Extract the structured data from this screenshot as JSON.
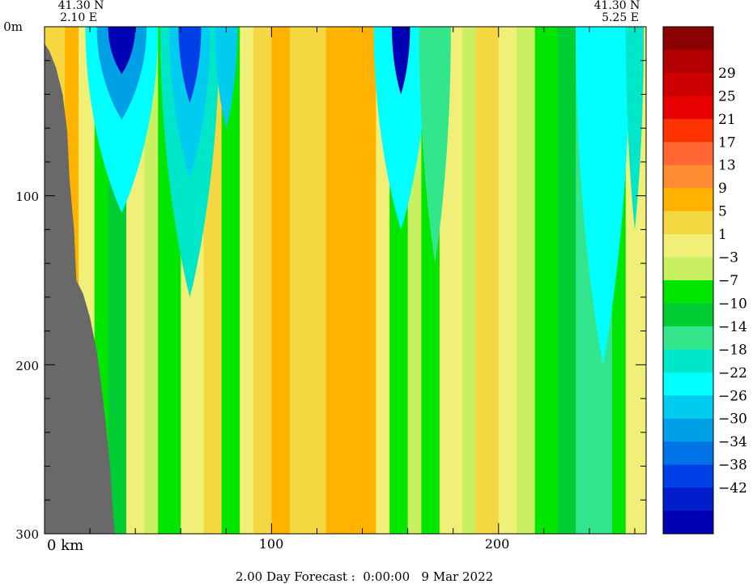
{
  "chart_data": {
    "type": "heatmap",
    "corner_left": {
      "lat": "41.30 N",
      "lon": "2.10 E"
    },
    "corner_right": {
      "lat": "41.30 N",
      "lon": "5.25 E"
    },
    "x_unit": "km",
    "xlim": [
      0,
      265
    ],
    "x_ticks": [
      0,
      100,
      200
    ],
    "x_tick_labels": [
      "0 km",
      "100",
      "200"
    ],
    "y_unit": "m",
    "ylim": [
      0,
      300
    ],
    "y_ticks": [
      0,
      100,
      200,
      300
    ],
    "y_tick_labels": [
      "0m",
      "100",
      "200",
      "300"
    ],
    "footer": "2.00 Day Forecast :  0:00:00   9 Mar 2022",
    "colorbar": {
      "labels": [
        "29",
        "25",
        "21",
        "17",
        "13",
        "9",
        "5",
        "1",
        "-3",
        "-7",
        "-10",
        "-14",
        "-18",
        "-22",
        "-26",
        "-30",
        "-34",
        "-38",
        "-42"
      ],
      "colors": [
        "#8b0000",
        "#b30000",
        "#cc0000",
        "#e60000",
        "#ff3300",
        "#ff6633",
        "#ff8c33",
        "#ffb300",
        "#f5d742",
        "#f0f078",
        "#c8f060",
        "#00e600",
        "#00cc33",
        "#33e68c",
        "#00e6c8",
        "#00ffff",
        "#00ccf0",
        "#00a0e6",
        "#0073e6",
        "#0040e6",
        "#001ecc",
        "#0000b4"
      ]
    },
    "columns": [
      {
        "x0": 0,
        "x1": 9,
        "color": "#f5d742"
      },
      {
        "x0": 9,
        "x1": 15,
        "color": "#ffb300"
      },
      {
        "x0": 15,
        "x1": 22,
        "color": "#f0f078"
      },
      {
        "x0": 22,
        "x1": 28,
        "color": "#00e600"
      },
      {
        "x0": 28,
        "x1": 36,
        "color": "#00cc33"
      },
      {
        "x0": 36,
        "x1": 44,
        "color": "#f0f078"
      },
      {
        "x0": 44,
        "x1": 50,
        "color": "#c8f060"
      },
      {
        "x0": 50,
        "x1": 60,
        "color": "#00e600"
      },
      {
        "x0": 60,
        "x1": 70,
        "color": "#f0f078"
      },
      {
        "x0": 70,
        "x1": 78,
        "color": "#f5d742"
      },
      {
        "x0": 78,
        "x1": 86,
        "color": "#00e600"
      },
      {
        "x0": 86,
        "x1": 92,
        "color": "#f0f078"
      },
      {
        "x0": 92,
        "x1": 100,
        "color": "#f5d742"
      },
      {
        "x0": 100,
        "x1": 108,
        "color": "#ffb300"
      },
      {
        "x0": 108,
        "x1": 124,
        "color": "#f5d742"
      },
      {
        "x0": 124,
        "x1": 146,
        "color": "#ffb300"
      },
      {
        "x0": 146,
        "x1": 152,
        "color": "#f0f078"
      },
      {
        "x0": 152,
        "x1": 160,
        "color": "#00e600"
      },
      {
        "x0": 160,
        "x1": 166,
        "color": "#c8f060"
      },
      {
        "x0": 166,
        "x1": 174,
        "color": "#00e600"
      },
      {
        "x0": 174,
        "x1": 184,
        "color": "#f0f078"
      },
      {
        "x0": 184,
        "x1": 190,
        "color": "#c8f060"
      },
      {
        "x0": 190,
        "x1": 200,
        "color": "#f5d742"
      },
      {
        "x0": 200,
        "x1": 208,
        "color": "#f0f078"
      },
      {
        "x0": 208,
        "x1": 216,
        "color": "#c8f060"
      },
      {
        "x0": 216,
        "x1": 226,
        "color": "#00e600"
      },
      {
        "x0": 226,
        "x1": 234,
        "color": "#00cc33"
      },
      {
        "x0": 234,
        "x1": 250,
        "color": "#33e68c"
      },
      {
        "x0": 250,
        "x1": 256,
        "color": "#00e600"
      },
      {
        "x0": 256,
        "x1": 265,
        "color": "#f0f078"
      }
    ],
    "upper_features": [
      {
        "x": 34,
        "depth": 110,
        "halfwidth": 16,
        "color": "#00ffff"
      },
      {
        "x": 34,
        "depth": 55,
        "halfwidth": 11,
        "color": "#00a0e6"
      },
      {
        "x": 34,
        "depth": 28,
        "halfwidth": 6,
        "color": "#0000b4"
      },
      {
        "x": 64,
        "depth": 160,
        "halfwidth": 13,
        "color": "#00e6c8"
      },
      {
        "x": 64,
        "depth": 90,
        "halfwidth": 9,
        "color": "#00ccf0"
      },
      {
        "x": 64,
        "depth": 45,
        "halfwidth": 5,
        "color": "#0040e6"
      },
      {
        "x": 80,
        "depth": 60,
        "halfwidth": 5,
        "color": "#00ccf0"
      },
      {
        "x": 157,
        "depth": 120,
        "halfwidth": 12,
        "color": "#00ffff"
      },
      {
        "x": 157,
        "depth": 40,
        "halfwidth": 4,
        "color": "#0000b4"
      },
      {
        "x": 172,
        "depth": 140,
        "halfwidth": 7,
        "color": "#33e68c"
      },
      {
        "x": 246,
        "depth": 200,
        "halfwidth": 12,
        "color": "#00ffff"
      },
      {
        "x": 260,
        "depth": 120,
        "halfwidth": 4,
        "color": "#00e6c8"
      }
    ],
    "bathymetry": [
      [
        0,
        10
      ],
      [
        2,
        14
      ],
      [
        5,
        24
      ],
      [
        8,
        40
      ],
      [
        10,
        62
      ],
      [
        11,
        90
      ],
      [
        13,
        120
      ],
      [
        14,
        150
      ],
      [
        17,
        158
      ],
      [
        20,
        172
      ],
      [
        23,
        192
      ],
      [
        25,
        212
      ],
      [
        27,
        235
      ],
      [
        29,
        262
      ],
      [
        30,
        285
      ],
      [
        31,
        300
      ]
    ],
    "land_color": "#696969"
  }
}
